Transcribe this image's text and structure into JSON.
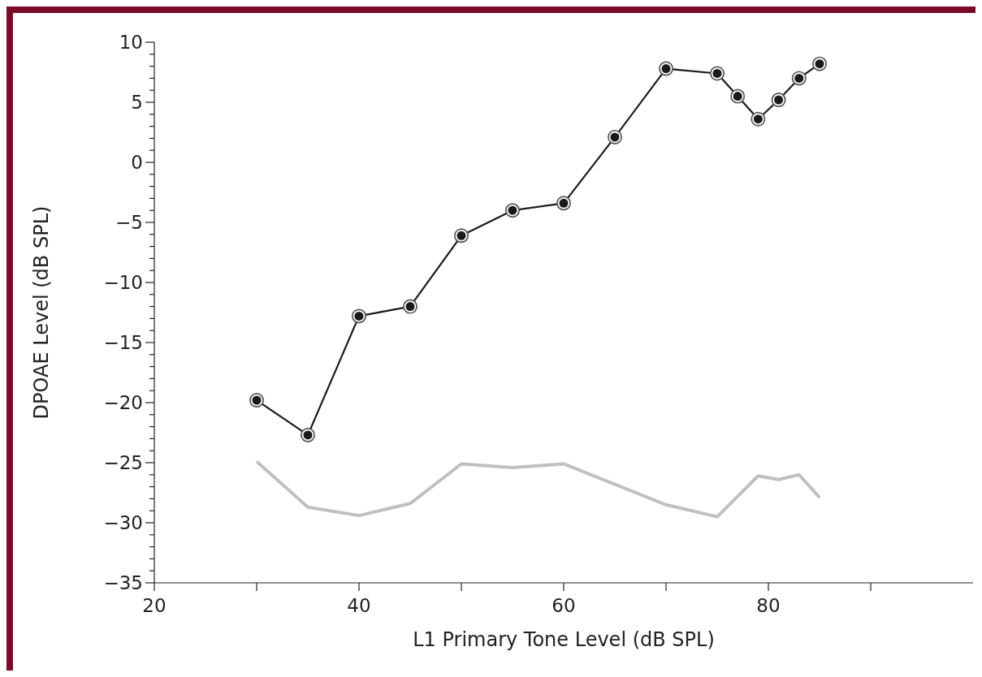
{
  "chart_data": {
    "type": "line",
    "xlabel": "L1 Primary Tone  Level (dB SPL)",
    "ylabel": "DPOAE Level (dB SPL)",
    "xlim": [
      20,
      100
    ],
    "xticks": [
      20,
      {
        "value": 30,
        "label": null
      },
      40,
      {
        "value": 50,
        "label": null
      },
      60,
      {
        "value": 70,
        "label": null
      },
      80,
      {
        "value": 90,
        "label": null
      }
    ],
    "ylim": [
      -35,
      10
    ],
    "yticks": [
      -35,
      {
        "value": -34,
        "label": null
      },
      {
        "value": -33,
        "label": null
      },
      {
        "value": -32,
        "label": null
      },
      {
        "value": -31,
        "label": null
      },
      -30,
      {
        "value": -29,
        "label": null
      },
      {
        "value": -28,
        "label": null
      },
      {
        "value": -27,
        "label": null
      },
      {
        "value": -26,
        "label": null
      },
      -25,
      {
        "value": -24,
        "label": null
      },
      {
        "value": -23,
        "label": null
      },
      {
        "value": -22,
        "label": null
      },
      {
        "value": -21,
        "label": null
      },
      -20,
      {
        "value": -19,
        "label": null
      },
      {
        "value": -18,
        "label": null
      },
      {
        "value": -17,
        "label": null
      },
      {
        "value": -16,
        "label": null
      },
      -15,
      {
        "value": -14,
        "label": null
      },
      {
        "value": -13,
        "label": null
      },
      {
        "value": -12,
        "label": null
      },
      {
        "value": -11,
        "label": null
      },
      -10,
      {
        "value": -9,
        "label": null
      },
      {
        "value": -8,
        "label": null
      },
      {
        "value": -7,
        "label": null
      },
      {
        "value": -6,
        "label": null
      },
      -5,
      {
        "value": -4,
        "label": null
      },
      {
        "value": -3,
        "label": null
      },
      {
        "value": -2,
        "label": null
      },
      {
        "value": -1,
        "label": null
      },
      0,
      {
        "value": 1,
        "label": null
      },
      {
        "value": 2,
        "label": null
      },
      {
        "value": 3,
        "label": null
      },
      {
        "value": 4,
        "label": null
      },
      5,
      {
        "value": 6,
        "label": null
      },
      {
        "value": 7,
        "label": null
      },
      {
        "value": 8,
        "label": null
      },
      {
        "value": 9,
        "label": null
      },
      10
    ],
    "marker": "circle",
    "line_style": "solid",
    "series": [
      {
        "color": "#1a1a1a",
        "x": [
          30,
          35,
          40,
          45,
          50,
          55,
          60,
          65,
          70,
          75,
          77,
          79,
          81,
          83,
          85
        ],
        "values": [
          -19.8,
          -22.7,
          -12.8,
          -12.0,
          -6.1,
          -4.0,
          -3.4,
          2.1,
          7.8,
          7.4,
          5.5,
          3.6,
          5.2,
          7.0,
          8.2
        ]
      },
      {
        "color": "#c0c0c4",
        "marker": "none",
        "x": [
          30,
          35,
          40,
          45,
          50,
          55,
          60,
          65,
          70,
          75,
          79,
          81,
          83,
          85
        ],
        "values": [
          -24.9,
          -28.7,
          -29.4,
          -28.4,
          -25.1,
          -25.4,
          -25.1,
          -26.8,
          -28.5,
          -29.5,
          -26.1,
          -26.4,
          -26.0,
          -27.9
        ]
      }
    ]
  }
}
